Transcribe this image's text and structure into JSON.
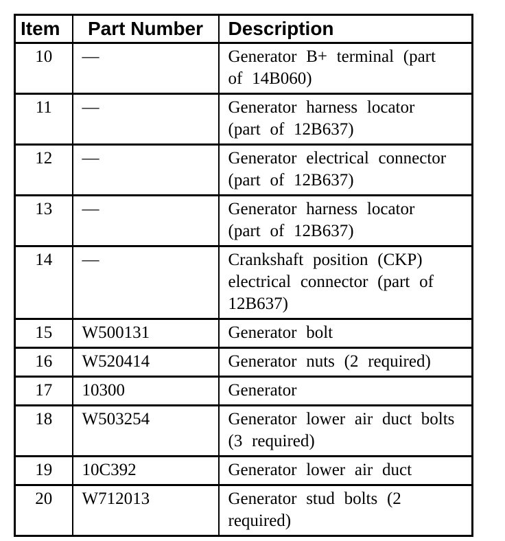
{
  "colors": {
    "background": "#ffffff",
    "text": "#000000",
    "table_border": "#000000"
  },
  "table": {
    "headers": {
      "item": "Item",
      "part_number": "Part Number",
      "description": "Description"
    },
    "rows": [
      {
        "item": "10",
        "part_number": "—",
        "description": "Generator B+ terminal (part\nof 14B060)"
      },
      {
        "item": "11",
        "part_number": "—",
        "description": "Generator harness locator\n(part of 12B637)"
      },
      {
        "item": "12",
        "part_number": "—",
        "description": "Generator electrical connector\n(part of 12B637)"
      },
      {
        "item": "13",
        "part_number": "—",
        "description": "Generator harness locator\n(part of 12B637)"
      },
      {
        "item": "14",
        "part_number": "—",
        "description": "Crankshaft position (CKP)\nelectrical connector (part of\n12B637)"
      },
      {
        "item": "15",
        "part_number": "W500131",
        "description": "Generator bolt"
      },
      {
        "item": "16",
        "part_number": "W520414",
        "description": "Generator nuts (2 required)"
      },
      {
        "item": "17",
        "part_number": "10300",
        "description": "Generator"
      },
      {
        "item": "18",
        "part_number": "W503254",
        "description": "Generator lower air duct bolts\n(3 required)"
      },
      {
        "item": "19",
        "part_number": "10C392",
        "description": "Generator lower air duct"
      },
      {
        "item": "20",
        "part_number": "W712013",
        "description": "Generator stud bolts (2\nrequired)"
      }
    ]
  }
}
